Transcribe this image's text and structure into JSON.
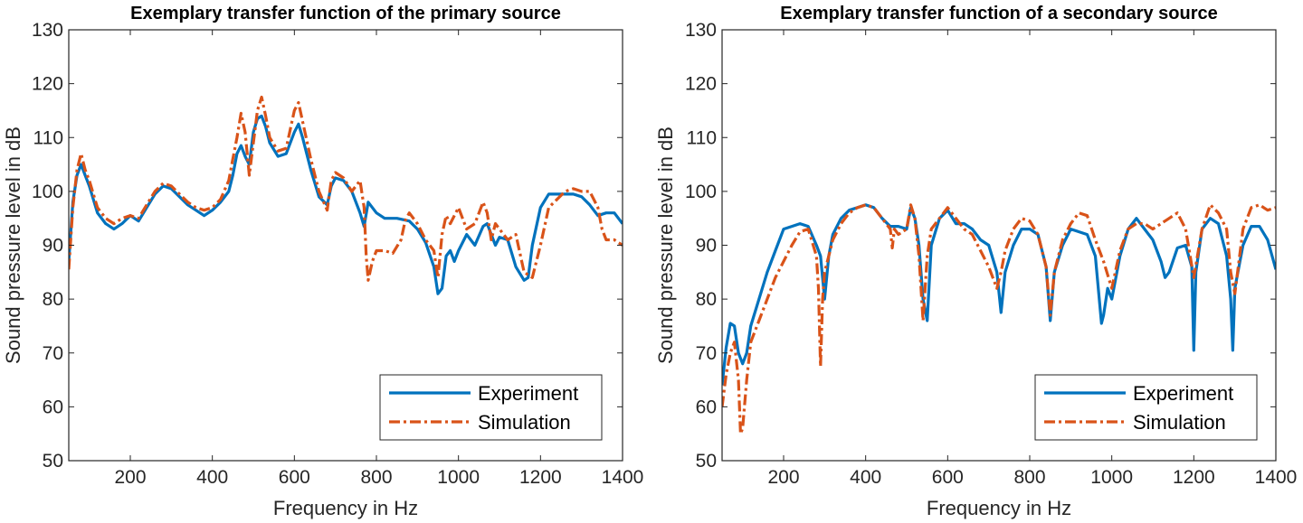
{
  "chart_data": [
    {
      "type": "line",
      "title": "Exemplary transfer function of the primary source",
      "xlabel": "Frequency in Hz",
      "ylabel": "Sound pressure level in dB",
      "xlim": [
        50,
        1400
      ],
      "ylim": [
        50,
        130
      ],
      "xticks": [
        200,
        400,
        600,
        800,
        1000,
        1200,
        1400
      ],
      "yticks": [
        50,
        60,
        70,
        80,
        90,
        100,
        110,
        120,
        130
      ],
      "legend": "bottom-right",
      "grid": false,
      "series": [
        {
          "name": "Experiment",
          "color": "#0072BD",
          "style": "solid",
          "x": [
            50,
            60,
            70,
            80,
            90,
            100,
            120,
            140,
            160,
            180,
            200,
            220,
            240,
            260,
            280,
            300,
            320,
            340,
            360,
            380,
            400,
            420,
            440,
            450,
            460,
            470,
            480,
            490,
            500,
            510,
            520,
            530,
            540,
            560,
            580,
            600,
            610,
            620,
            640,
            660,
            680,
            690,
            700,
            720,
            740,
            760,
            770,
            780,
            800,
            820,
            850,
            880,
            900,
            920,
            940,
            950,
            960,
            970,
            980,
            990,
            1000,
            1020,
            1040,
            1060,
            1070,
            1080,
            1090,
            1100,
            1120,
            1140,
            1160,
            1170,
            1180,
            1200,
            1220,
            1240,
            1260,
            1280,
            1300,
            1320,
            1340,
            1360,
            1380,
            1400
          ],
          "y": [
            87,
            98,
            103,
            105,
            103,
            101,
            96,
            94,
            93,
            94,
            95.5,
            94.5,
            97,
            99.5,
            101,
            100.5,
            99,
            97.5,
            96.5,
            95.5,
            96.5,
            98,
            100,
            103,
            107,
            108.5,
            106.5,
            105,
            111,
            113.5,
            114,
            112,
            109,
            106.5,
            107,
            111,
            112.5,
            110,
            104,
            99,
            97.5,
            101,
            102.5,
            102,
            100,
            96,
            93.5,
            98,
            96,
            95,
            95,
            94.5,
            93,
            90.5,
            86,
            81,
            82,
            88,
            89,
            87,
            89,
            92,
            90,
            93.5,
            94,
            92,
            90,
            91.5,
            91,
            86,
            83.5,
            84,
            90,
            97,
            99.5,
            99.5,
            99.5,
            99.5,
            99,
            97.5,
            95.5,
            96,
            96,
            94
          ]
        },
        {
          "name": "Simulation",
          "color": "#D95319",
          "style": "dash-dot",
          "x": [
            50,
            60,
            70,
            80,
            90,
            100,
            120,
            140,
            160,
            180,
            200,
            220,
            240,
            260,
            280,
            300,
            320,
            340,
            360,
            380,
            400,
            420,
            440,
            450,
            460,
            470,
            480,
            490,
            500,
            510,
            520,
            530,
            540,
            560,
            580,
            600,
            610,
            620,
            640,
            660,
            680,
            690,
            700,
            720,
            740,
            760,
            770,
            775,
            780,
            790,
            800,
            820,
            840,
            860,
            870,
            880,
            900,
            920,
            940,
            950,
            960,
            970,
            980,
            1000,
            1020,
            1040,
            1060,
            1070,
            1080,
            1090,
            1100,
            1120,
            1140,
            1160,
            1180,
            1200,
            1220,
            1240,
            1260,
            1280,
            1300,
            1320,
            1340,
            1350,
            1360,
            1380,
            1400
          ],
          "y": [
            85.5,
            97,
            104,
            107,
            104,
            102,
            97,
            95,
            94,
            95,
            95.5,
            95,
            97.5,
            100,
            101.5,
            101,
            99.5,
            98,
            97,
            96.5,
            97,
            98.5,
            102,
            106,
            110,
            114.5,
            111,
            103,
            109,
            115,
            117.5,
            114,
            110,
            107.5,
            108,
            115,
            116.5,
            113,
            106,
            100,
            96.5,
            102,
            103.5,
            102.5,
            100,
            102,
            97,
            88,
            83.5,
            87,
            89,
            89,
            88.5,
            91,
            94.5,
            96,
            94,
            91,
            89,
            84,
            92,
            95.5,
            94,
            97,
            93,
            94,
            98,
            96,
            91,
            94,
            93,
            91,
            92,
            85,
            84,
            90,
            97,
            98.5,
            100,
            100.5,
            100,
            100,
            97,
            93,
            91,
            91,
            90
          ]
        }
      ]
    },
    {
      "type": "line",
      "title": "Exemplary transfer function of a secondary source",
      "xlabel": "Frequency in Hz",
      "ylabel": "Sound pressure level in dB",
      "xlim": [
        50,
        1400
      ],
      "ylim": [
        50,
        130
      ],
      "xticks": [
        200,
        400,
        600,
        800,
        1000,
        1200,
        1400
      ],
      "yticks": [
        50,
        60,
        70,
        80,
        90,
        100,
        110,
        120,
        130
      ],
      "legend": "bottom-right",
      "grid": false,
      "series": [
        {
          "name": "Experiment",
          "color": "#0072BD",
          "style": "solid",
          "x": [
            50,
            60,
            70,
            80,
            90,
            100,
            110,
            120,
            140,
            160,
            180,
            200,
            220,
            240,
            260,
            280,
            290,
            300,
            310,
            320,
            340,
            360,
            380,
            400,
            420,
            440,
            460,
            480,
            500,
            510,
            520,
            530,
            540,
            550,
            560,
            580,
            600,
            620,
            640,
            660,
            680,
            700,
            720,
            730,
            740,
            760,
            780,
            800,
            820,
            840,
            850,
            860,
            880,
            900,
            920,
            940,
            960,
            975,
            980,
            990,
            1000,
            1020,
            1040,
            1060,
            1080,
            1100,
            1120,
            1130,
            1140,
            1160,
            1180,
            1195,
            1200,
            1205,
            1220,
            1240,
            1260,
            1280,
            1290,
            1295,
            1300,
            1320,
            1340,
            1360,
            1380,
            1400
          ],
          "y": [
            64,
            71,
            75.5,
            75,
            70,
            68,
            70,
            75,
            80,
            85,
            89,
            93,
            93.5,
            94,
            93.5,
            90,
            88,
            80,
            88,
            92,
            95,
            96.5,
            97,
            97.5,
            97,
            95,
            93.5,
            93.5,
            93,
            97,
            95,
            90,
            80,
            76,
            90,
            95,
            96.5,
            94,
            94,
            93,
            91,
            90,
            85,
            77.5,
            85,
            90,
            93,
            93,
            92,
            86,
            76,
            85,
            90,
            93,
            92.5,
            92,
            88,
            75.5,
            77,
            82,
            80,
            88,
            93,
            95,
            93,
            91,
            87,
            84,
            85,
            89.5,
            90,
            86,
            70.5,
            85,
            93,
            95,
            94,
            88,
            80,
            70.5,
            82,
            90,
            93.5,
            93.5,
            91,
            85.5
          ]
        },
        {
          "name": "Simulation",
          "color": "#D95319",
          "style": "dash-dot",
          "x": [
            50,
            60,
            70,
            80,
            90,
            95,
            100,
            110,
            120,
            140,
            160,
            180,
            200,
            220,
            240,
            260,
            280,
            285,
            290,
            295,
            300,
            310,
            320,
            340,
            360,
            380,
            400,
            420,
            440,
            460,
            465,
            470,
            480,
            500,
            510,
            520,
            530,
            540,
            545,
            550,
            560,
            580,
            600,
            620,
            640,
            660,
            680,
            700,
            720,
            730,
            740,
            760,
            780,
            800,
            820,
            840,
            850,
            860,
            880,
            900,
            920,
            940,
            960,
            980,
            1000,
            1020,
            1040,
            1060,
            1080,
            1100,
            1120,
            1140,
            1160,
            1180,
            1200,
            1220,
            1240,
            1260,
            1280,
            1290,
            1300,
            1320,
            1340,
            1360,
            1380,
            1400
          ],
          "y": [
            60,
            66,
            70,
            72,
            65,
            55,
            56,
            65,
            72,
            76,
            80,
            84,
            87,
            90,
            92.5,
            93,
            88,
            82,
            67.5,
            80,
            85,
            88,
            91,
            94,
            96,
            97,
            97.5,
            97,
            95,
            93,
            89.5,
            93,
            92,
            93,
            97.5,
            95,
            88,
            76,
            82,
            88,
            93,
            95,
            97,
            95,
            93,
            92,
            89,
            86,
            82,
            85,
            89,
            93,
            95,
            94.5,
            92,
            86,
            77,
            85,
            91,
            94,
            96,
            95.5,
            91,
            87,
            82,
            89,
            93,
            94,
            94,
            93,
            94,
            95,
            96,
            93,
            84,
            93,
            97.5,
            96,
            93,
            85,
            81,
            93,
            97,
            97.5,
            96.5,
            97
          ]
        }
      ]
    }
  ]
}
